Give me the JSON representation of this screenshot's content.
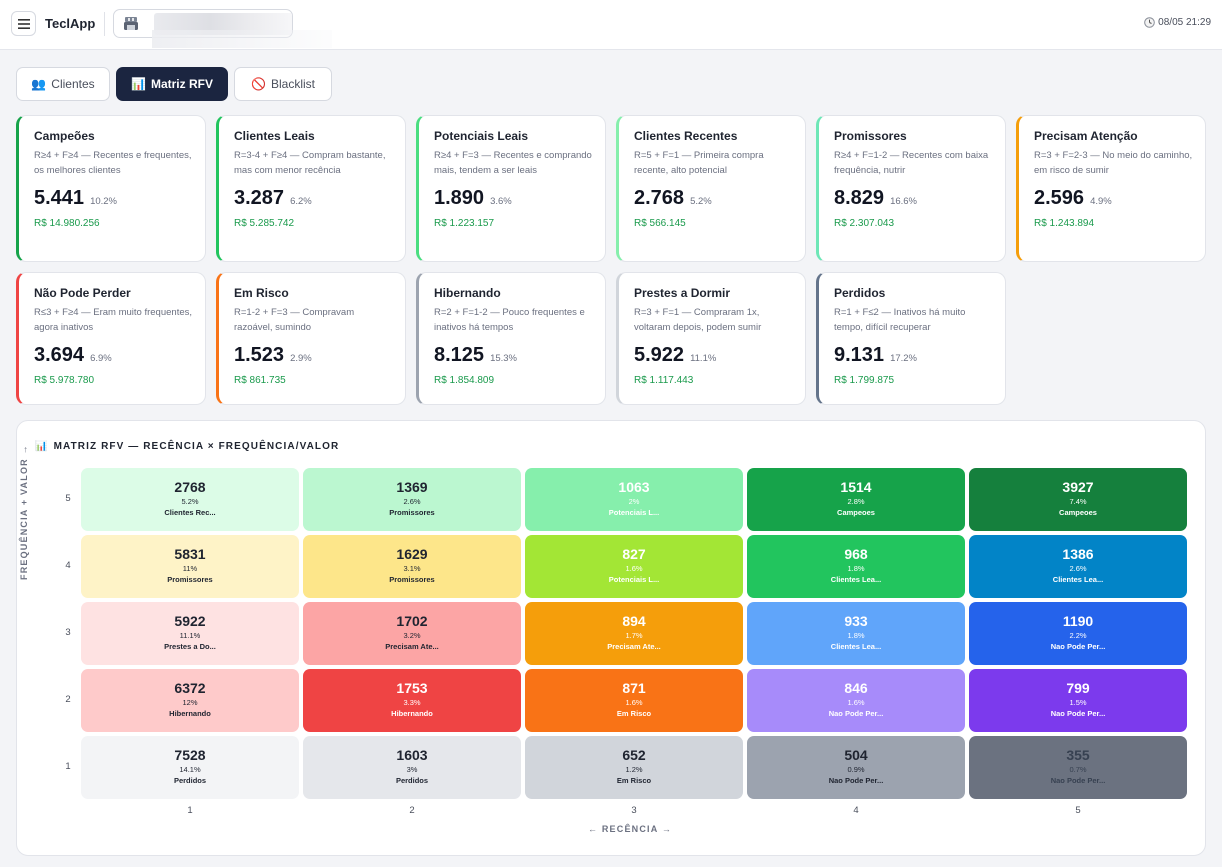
{
  "app": {
    "title": "TeclApp",
    "clock": "08/05 21:29"
  },
  "icons": {
    "menu": "menu-icon",
    "store": "store-icon",
    "clock": "clock-icon"
  },
  "tabs": [
    {
      "label": "Clientes",
      "icon": "👥",
      "active": false
    },
    {
      "label": "Matriz RFV",
      "icon": "📊",
      "active": true
    },
    {
      "label": "Blacklist",
      "icon": "🚫",
      "active": false
    }
  ],
  "segments": [
    {
      "name": "Campeões",
      "desc": "R≥4 + F≥4 — Recentes e frequentes, os melhores clientes",
      "count": "5.441",
      "pct": "10.2%",
      "value": "R$ 14.980.256",
      "color": "#16a34a"
    },
    {
      "name": "Clientes Leais",
      "desc": "R=3-4 + F≥4 — Compram bastante, mas com menor recência",
      "count": "3.287",
      "pct": "6.2%",
      "value": "R$ 5.285.742",
      "color": "#22c55e"
    },
    {
      "name": "Potenciais Leais",
      "desc": "R≥4 + F=3 — Recentes e comprando mais, tendem a ser leais",
      "count": "1.890",
      "pct": "3.6%",
      "value": "R$ 1.223.157",
      "color": "#4ade80"
    },
    {
      "name": "Clientes Recentes",
      "desc": "R=5 + F=1 — Primeira compra recente, alto potencial",
      "count": "2.768",
      "pct": "5.2%",
      "value": "R$ 566.145",
      "color": "#86efac"
    },
    {
      "name": "Promissores",
      "desc": "R≥4 + F=1-2 — Recentes com baixa frequência, nutrir",
      "count": "8.829",
      "pct": "16.6%",
      "value": "R$ 2.307.043",
      "color": "#6ee7b7"
    },
    {
      "name": "Precisam Atenção",
      "desc": "R=3 + F=2-3 — No meio do caminho, em risco de sumir",
      "count": "2.596",
      "pct": "4.9%",
      "value": "R$ 1.243.894",
      "color": "#f59e0b"
    },
    {
      "name": "Não Pode Perder",
      "desc": "R≤3 + F≥4 — Eram muito frequentes, agora inativos",
      "count": "3.694",
      "pct": "6.9%",
      "value": "R$ 5.978.780",
      "color": "#ef4444"
    },
    {
      "name": "Em Risco",
      "desc": "R=1-2 + F=3 — Compravam razoável, sumindo",
      "count": "1.523",
      "pct": "2.9%",
      "value": "R$ 861.735",
      "color": "#f97316"
    },
    {
      "name": "Hibernando",
      "desc": "R=2 + F=1-2 — Pouco frequentes e inativos há tempos",
      "count": "8.125",
      "pct": "15.3%",
      "value": "R$ 1.854.809",
      "color": "#9ca3af"
    },
    {
      "name": "Prestes a Dormir",
      "desc": "R=3 + F=1 — Compraram 1x, voltaram depois, podem sumir",
      "count": "5.922",
      "pct": "11.1%",
      "value": "R$ 1.117.443",
      "color": "#d1d5db"
    },
    {
      "name": "Perdidos",
      "desc": "R=1 + F≤2 — Inativos há muito tempo, difícil recuperar",
      "count": "9.131",
      "pct": "17.2%",
      "value": "R$ 1.799.875",
      "color": "#64748b"
    }
  ],
  "matrix": {
    "title": "MATRIZ RFV — RECÊNCIA × FREQUÊNCIA/VALOR",
    "title_icon": "📊",
    "y_label": "FREQUÊNCIA + VALOR →",
    "x_label": "← RECÊNCIA →",
    "y_ticks": [
      "5",
      "4",
      "3",
      "2",
      "1"
    ],
    "x_ticks": [
      "1",
      "2",
      "3",
      "4",
      "5"
    ],
    "rows": [
      [
        {
          "v": "2768",
          "p": "5.2%",
          "s": "Clientes Rec...",
          "bg": "#dcfce7",
          "fg": "#1f2430"
        },
        {
          "v": "1369",
          "p": "2.6%",
          "s": "Promissores",
          "bg": "#bbf7d0",
          "fg": "#1f2430"
        },
        {
          "v": "1063",
          "p": "2%",
          "s": "Potenciais L...",
          "bg": "#86efac",
          "fg": "#ffffff"
        },
        {
          "v": "1514",
          "p": "2.8%",
          "s": "Campeoes",
          "bg": "#16a34a",
          "fg": "#ffffff"
        },
        {
          "v": "3927",
          "p": "7.4%",
          "s": "Campeoes",
          "bg": "#15803d",
          "fg": "#ffffff"
        }
      ],
      [
        {
          "v": "5831",
          "p": "11%",
          "s": "Promissores",
          "bg": "#fef3c7",
          "fg": "#1f2430"
        },
        {
          "v": "1629",
          "p": "3.1%",
          "s": "Promissores",
          "bg": "#fde68a",
          "fg": "#1f2430"
        },
        {
          "v": "827",
          "p": "1.6%",
          "s": "Potenciais L...",
          "bg": "#a3e635",
          "fg": "#ffffff"
        },
        {
          "v": "968",
          "p": "1.8%",
          "s": "Clientes Lea...",
          "bg": "#22c55e",
          "fg": "#ffffff"
        },
        {
          "v": "1386",
          "p": "2.6%",
          "s": "Clientes Lea...",
          "bg": "#0284c7",
          "fg": "#ffffff"
        }
      ],
      [
        {
          "v": "5922",
          "p": "11.1%",
          "s": "Prestes a Do...",
          "bg": "#fee2e2",
          "fg": "#1f2430"
        },
        {
          "v": "1702",
          "p": "3.2%",
          "s": "Precisam Ate...",
          "bg": "#fca5a5",
          "fg": "#1f2430"
        },
        {
          "v": "894",
          "p": "1.7%",
          "s": "Precisam Ate...",
          "bg": "#f59e0b",
          "fg": "#ffffff"
        },
        {
          "v": "933",
          "p": "1.8%",
          "s": "Clientes Lea...",
          "bg": "#60a5fa",
          "fg": "#ffffff"
        },
        {
          "v": "1190",
          "p": "2.2%",
          "s": "Nao Pode Per...",
          "bg": "#2563eb",
          "fg": "#ffffff"
        }
      ],
      [
        {
          "v": "6372",
          "p": "12%",
          "s": "Hibernando",
          "bg": "#fecaca",
          "fg": "#1f2430"
        },
        {
          "v": "1753",
          "p": "3.3%",
          "s": "Hibernando",
          "bg": "#ef4444",
          "fg": "#ffffff"
        },
        {
          "v": "871",
          "p": "1.6%",
          "s": "Em Risco",
          "bg": "#f97316",
          "fg": "#ffffff"
        },
        {
          "v": "846",
          "p": "1.6%",
          "s": "Nao Pode Per...",
          "bg": "#a78bfa",
          "fg": "#ffffff"
        },
        {
          "v": "799",
          "p": "1.5%",
          "s": "Nao Pode Per...",
          "bg": "#7c3aed",
          "fg": "#ffffff"
        }
      ],
      [
        {
          "v": "7528",
          "p": "14.1%",
          "s": "Perdidos",
          "bg": "#f3f4f6",
          "fg": "#1f2430"
        },
        {
          "v": "1603",
          "p": "3%",
          "s": "Perdidos",
          "bg": "#e5e7eb",
          "fg": "#1f2430"
        },
        {
          "v": "652",
          "p": "1.2%",
          "s": "Em Risco",
          "bg": "#d1d5db",
          "fg": "#1f2430"
        },
        {
          "v": "504",
          "p": "0.9%",
          "s": "Nao Pode Per...",
          "bg": "#9ca3af",
          "fg": "#1f2430"
        },
        {
          "v": "355",
          "p": "0.7%",
          "s": "Nao Pode Per...",
          "bg": "#6b7280",
          "fg": "#374151"
        }
      ]
    ]
  }
}
